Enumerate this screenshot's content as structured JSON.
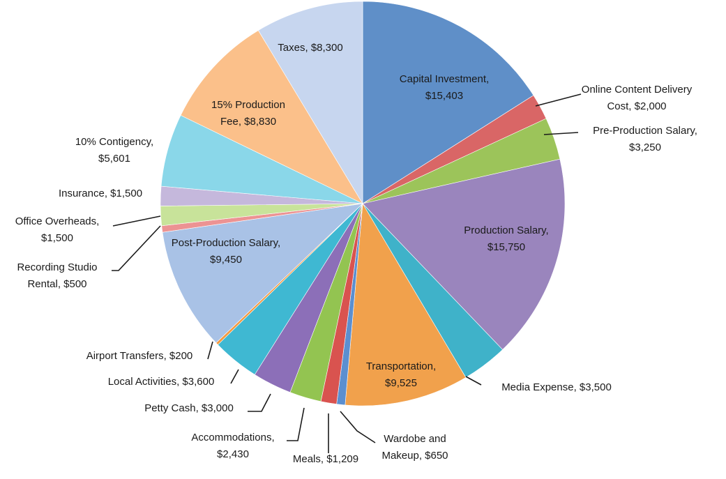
{
  "chart_data": {
    "type": "pie",
    "title": "",
    "slices": [
      {
        "label_lines": [
          "Capital Investment,",
          "$15,403"
        ],
        "category": "Capital Investment",
        "value": 15403,
        "color": "#5f8fc8"
      },
      {
        "label_lines": [
          "Online Content Delivery",
          "Cost,  $2,000"
        ],
        "category": "Online Content Delivery Cost",
        "value": 2000,
        "color": "#d96666"
      },
      {
        "label_lines": [
          "Pre-Production Salary,",
          "$3,250"
        ],
        "category": "Pre-Production Salary",
        "value": 3250,
        "color": "#9cc45a"
      },
      {
        "label_lines": [
          "Production Salary,",
          "$15,750"
        ],
        "category": "Production Salary",
        "value": 15750,
        "color": "#9a85bd"
      },
      {
        "label_lines": [
          "Media Expense,  $3,500"
        ],
        "category": "Media Expense",
        "value": 3500,
        "color": "#3fb2c9"
      },
      {
        "label_lines": [
          "Transportation,",
          "$9,525"
        ],
        "category": "Transportation",
        "value": 9525,
        "color": "#f1a14c"
      },
      {
        "label_lines": [
          "Wardobe and",
          "Makeup,  $650"
        ],
        "category": "Wardobe and Makeup",
        "value": 650,
        "color": "#5b8fd0"
      },
      {
        "label_lines": [
          "Meals,  $1,209"
        ],
        "category": "Meals",
        "value": 1209,
        "color": "#d9534f"
      },
      {
        "label_lines": [
          "Accommodations,",
          "$2,430"
        ],
        "category": "Accommodations",
        "value": 2430,
        "color": "#93c451"
      },
      {
        "label_lines": [
          "Petty Cash,  $3,000"
        ],
        "category": "Petty Cash",
        "value": 3000,
        "color": "#8c6fb8"
      },
      {
        "label_lines": [
          "Local Activities,  $3,600"
        ],
        "category": "Local Activities",
        "value": 3600,
        "color": "#3fb8d2"
      },
      {
        "label_lines": [
          "Airport Transfers,  $200"
        ],
        "category": "Airport Transfers",
        "value": 200,
        "color": "#f29a42"
      },
      {
        "label_lines": [
          "Post-Production Salary,",
          "$9,450"
        ],
        "category": "Post-Production Salary",
        "value": 9450,
        "color": "#a9c2e6"
      },
      {
        "label_lines": [
          "Recording Studio",
          "Rental,  $500"
        ],
        "category": "Recording Studio Rental",
        "value": 500,
        "color": "#ec9393"
      },
      {
        "label_lines": [
          "Office Overheads,",
          "$1,500"
        ],
        "category": "Office Overheads",
        "value": 1500,
        "color": "#c8e39a"
      },
      {
        "label_lines": [
          "Insurance,  $1,500"
        ],
        "category": "Insurance",
        "value": 1500,
        "color": "#c5b8dc"
      },
      {
        "label_lines": [
          "10% Contigency,",
          "$5,601"
        ],
        "category": "10% Contigency",
        "value": 5601,
        "color": "#8ad7e9"
      },
      {
        "label_lines": [
          "15% Production",
          "Fee,  $8,830"
        ],
        "category": "15% Production Fee",
        "value": 8830,
        "color": "#fbc08a"
      },
      {
        "label_lines": [
          "Taxes,  $8,300"
        ],
        "category": "Taxes",
        "value": 8300,
        "color": "#c7d6ef"
      }
    ]
  }
}
